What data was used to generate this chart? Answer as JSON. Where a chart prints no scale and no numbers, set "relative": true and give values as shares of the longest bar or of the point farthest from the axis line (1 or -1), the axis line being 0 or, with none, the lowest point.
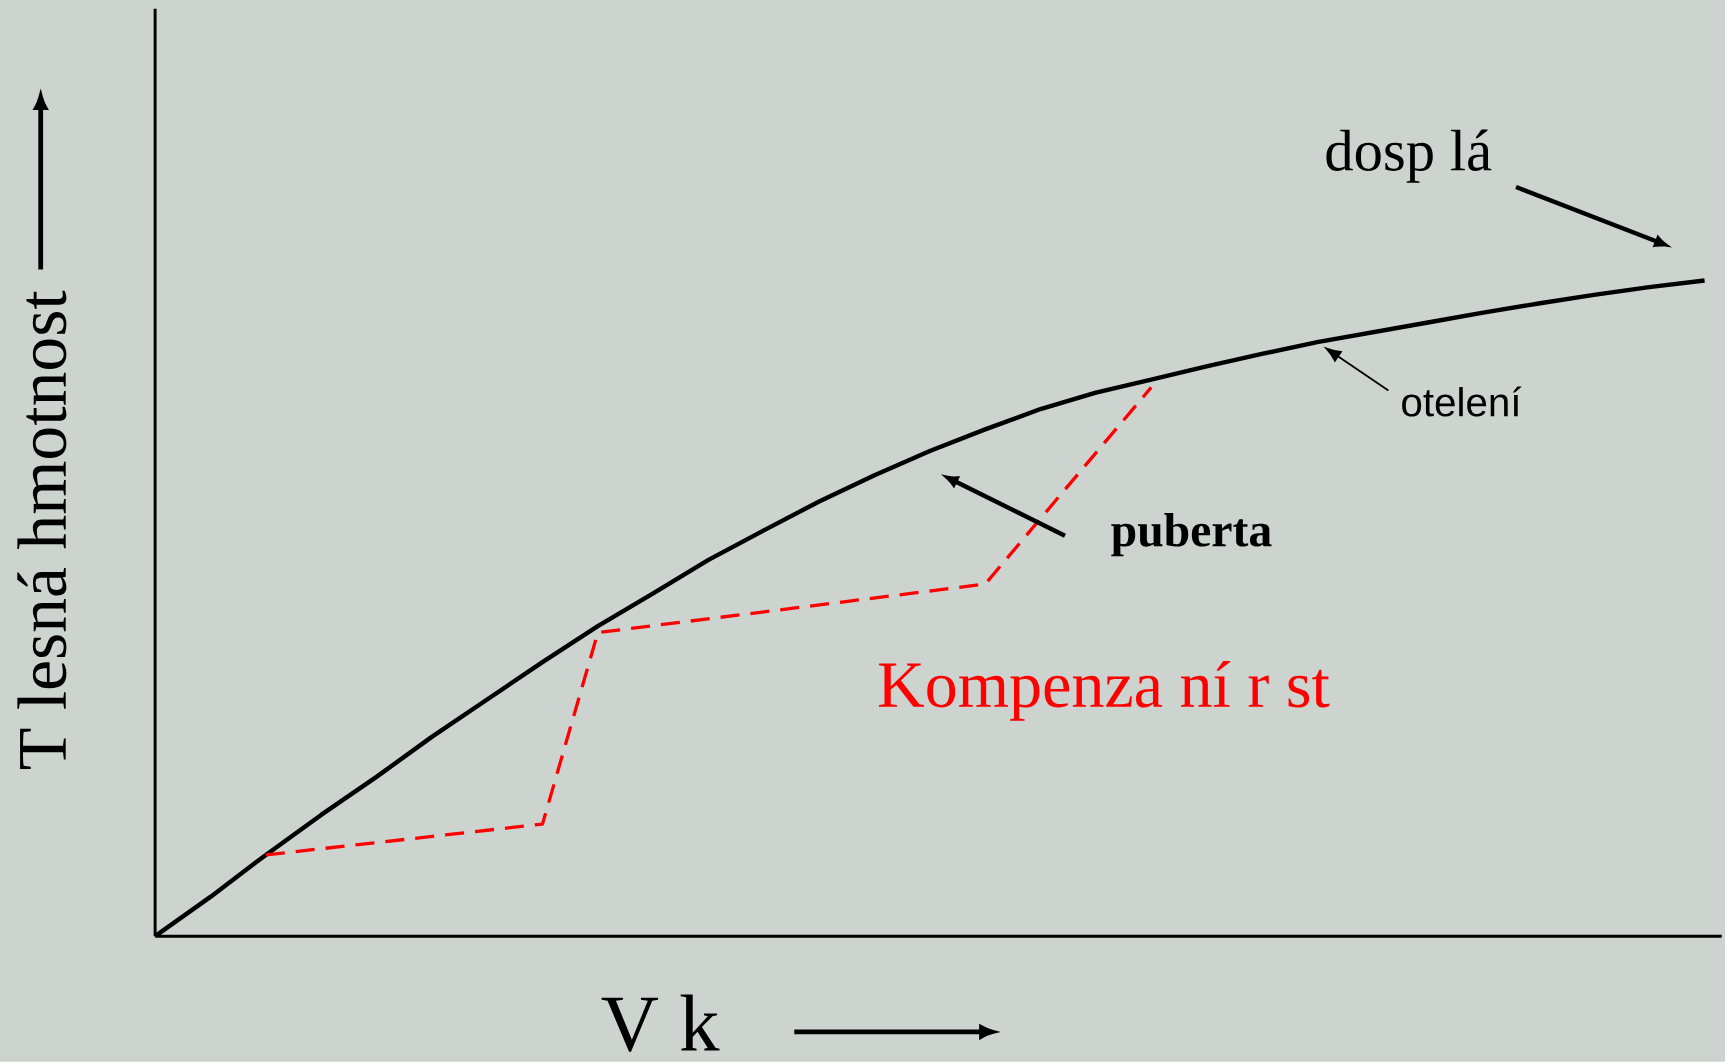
{
  "chart_data": {
    "type": "line",
    "relative": true,
    "tick_labels": false,
    "xlabel": "V k",
    "ylabel": "T lesná hmotnost",
    "categories": [
      null,
      null,
      null,
      null,
      null,
      null,
      null,
      null,
      null,
      null,
      null,
      null,
      null,
      null,
      null,
      null,
      null,
      null,
      null,
      null,
      null,
      null,
      null,
      null,
      null,
      null,
      null,
      null,
      null
    ],
    "series": [
      {
        "color": "#000000",
        "line_style": "solid",
        "values": [
          0,
          0.06,
          0.124,
          0.185,
          0.243,
          0.304,
          0.361,
          0.418,
          0.473,
          0.523,
          0.574,
          0.619,
          0.663,
          0.703,
          0.74,
          0.773,
          0.804,
          0.829,
          0.849,
          0.869,
          0.888,
          0.906,
          0.921,
          0.936,
          0.951,
          0.965,
          0.978,
          0.99,
          1.0
        ]
      },
      {
        "color": "#ff0000",
        "line_style": "dashed",
        "values": [
          null,
          null,
          0.124,
          null,
          null,
          null,
          null,
          0.171,
          0.463,
          null,
          null,
          null,
          null,
          null,
          null,
          0.537,
          null,
          null,
          0.837,
          null,
          null,
          null,
          null,
          null,
          null,
          null,
          null,
          null,
          null
        ]
      }
    ],
    "annotations": [
      "dosp lá",
      "otelení",
      "puberta",
      "Kompenza ní r st"
    ]
  }
}
